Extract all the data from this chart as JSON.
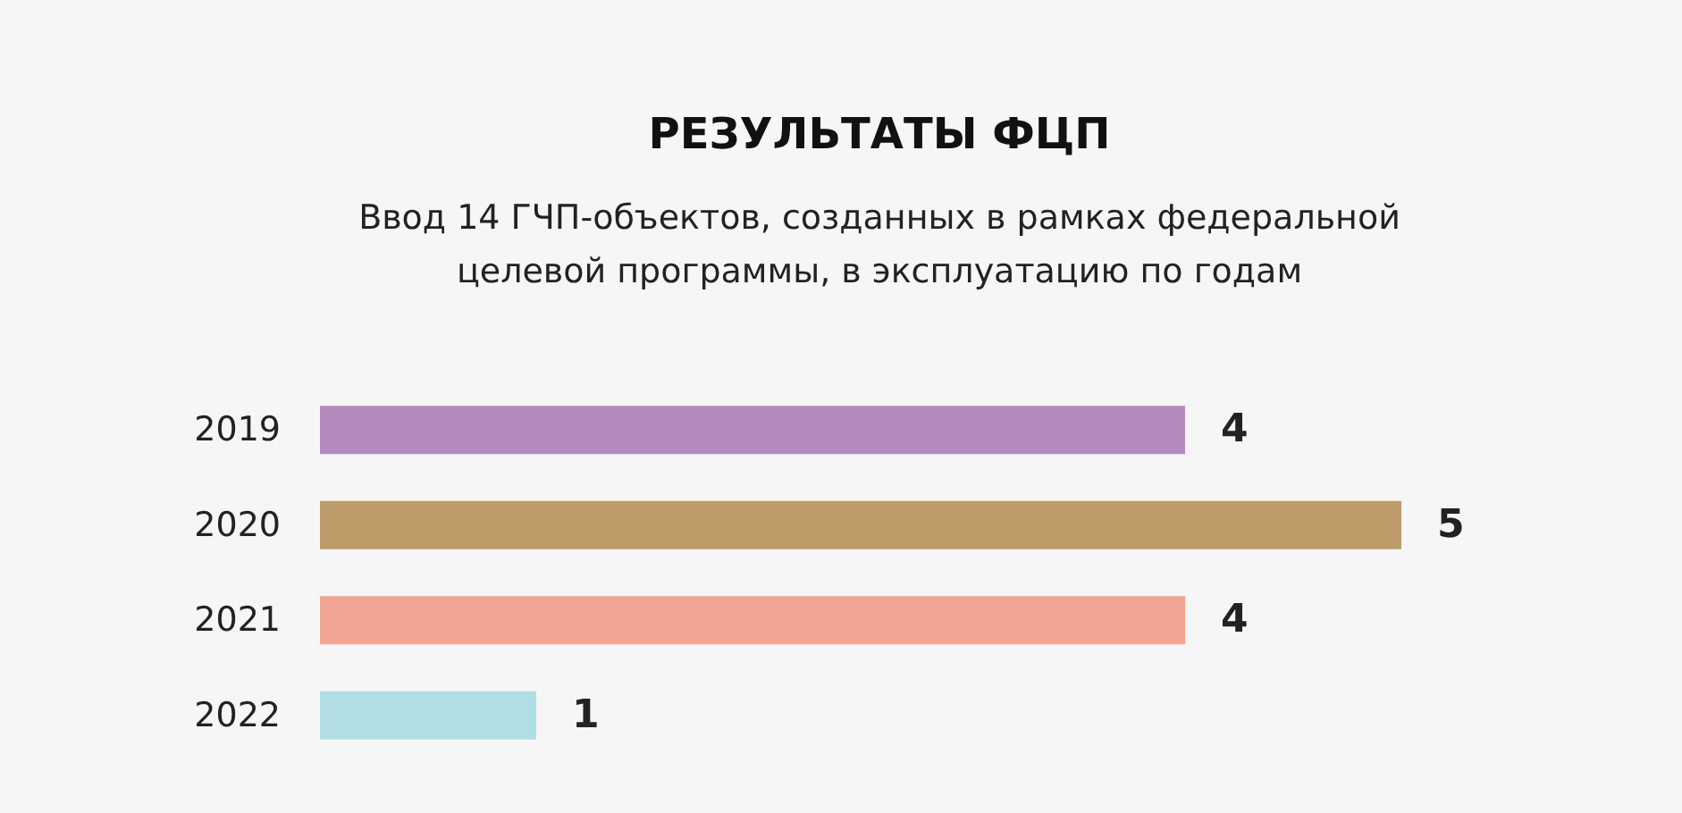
{
  "chart_data": {
    "type": "bar",
    "orientation": "horizontal",
    "title": "РЕЗУЛЬТАТЫ ФЦП",
    "subtitle": "Ввод 14 ГЧП-объектов, созданных в рамках федеральной\nцелевой программы, в эксплуатацию по годам",
    "categories": [
      "2019",
      "2020",
      "2021",
      "2022"
    ],
    "values": [
      4,
      5,
      4,
      1
    ],
    "colors": [
      "#b48abe",
      "#bd9b69",
      "#f2a593",
      "#b1dee4"
    ],
    "data_labels": true
  }
}
